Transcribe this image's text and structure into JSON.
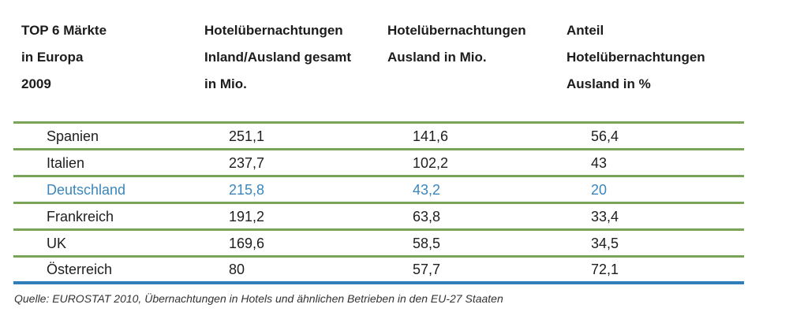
{
  "header": {
    "col0": [
      "TOP 6 Märkte",
      "in Europa",
      "2009"
    ],
    "col1": [
      "Hotelübernachtungen",
      "Inland/Ausland gesamt",
      "in Mio."
    ],
    "col2": [
      "Hotelübernachtungen",
      "Ausland in Mio."
    ],
    "col3": [
      "Anteil",
      "Hotelübernachtungen",
      "Ausland in  %"
    ]
  },
  "rows": [
    {
      "country": "Spanien",
      "total": "251,1",
      "foreign": "141,6",
      "share": "56,4"
    },
    {
      "country": "Italien",
      "total": "237,7",
      "foreign": "102,2",
      "share": "43"
    },
    {
      "country": "Deutschland",
      "total": "215,8",
      "foreign": "43,2",
      "share": "20"
    },
    {
      "country": "Frankreich",
      "total": "191,2",
      "foreign": "63,8",
      "share": "33,4"
    },
    {
      "country": "UK",
      "total": "169,6",
      "foreign": "58,5",
      "share": "34,5"
    },
    {
      "country": "Österreich",
      "total": "80",
      "foreign": "57,7",
      "share": "72,1"
    }
  ],
  "colors": {
    "rule": "#7aa35a",
    "bottom_rule": "#2e7fb9",
    "highlight_text": "#3a86bd"
  },
  "source": "Quelle: EUROSTAT 2010, Übernachtungen in Hotels und ähnlichen Betrieben in den EU-27 Staaten"
}
